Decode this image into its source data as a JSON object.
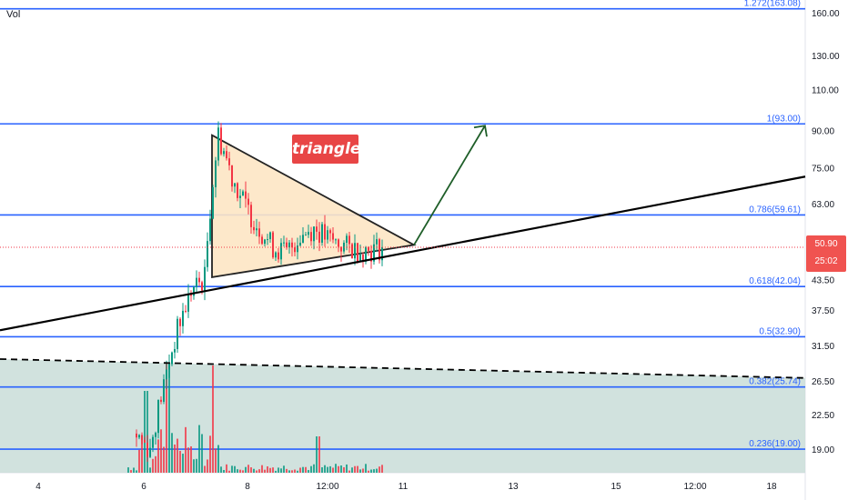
{
  "volume_label": "Vol",
  "pattern_badge": "triangle",
  "last_price": {
    "value": "50.90",
    "countdown": "25:02"
  },
  "colors": {
    "up": "#089981",
    "down": "#f23645",
    "fib": "#2962ff",
    "triangle_fill": "#fde6c4",
    "zone": "#c9ddd8",
    "badge": "#e84545",
    "arrow": "#1e5e28",
    "price_line": "#f23645"
  },
  "chart_data": {
    "type": "candlestick",
    "price_scale": "log",
    "ylim": [
      16.5,
      170
    ],
    "y_ticks": [
      "160.00",
      "130.00",
      "110.00",
      "90.00",
      "75.00",
      "63.00",
      "50.90",
      "43.50",
      "37.50",
      "31.50",
      "26.50",
      "22.50",
      "19.00"
    ],
    "x_tick_labels": [
      "4",
      "6",
      "8",
      "12:00",
      "11",
      "13",
      "15",
      "12:00",
      "18"
    ],
    "fib_levels": [
      {
        "label": "1.272(163.08)",
        "value": 163.08
      },
      {
        "label": "1(93.00)",
        "value": 93.0
      },
      {
        "label": "0.786(59.61)",
        "value": 59.61
      },
      {
        "label": "0.618(42.04)",
        "value": 42.04
      },
      {
        "label": "0.5(32.90)",
        "value": 32.9
      },
      {
        "label": "0.382(25.74)",
        "value": 25.74
      },
      {
        "label": "0.236(19.00)",
        "value": 19.0
      }
    ],
    "last_price": 50.9,
    "x_labels": [
      "6",
      "8",
      "11"
    ],
    "price_path": [
      20.5,
      19,
      26,
      34,
      41,
      44,
      88,
      72,
      62,
      56,
      51,
      49.5,
      54,
      56,
      53,
      51.5,
      50.5,
      50.2,
      50.9
    ],
    "support_line": [
      {
        "x_label": "4",
        "price": 35.5
      },
      {
        "x_label": "18",
        "price": 70
      }
    ],
    "triangle": [
      {
        "x_label": "pattern start",
        "price": 88
      },
      {
        "x_label": "11",
        "price": 51.5
      },
      {
        "x_label": "pattern start",
        "price": 44
      }
    ],
    "target_arrow": {
      "from_price": 51.5,
      "to_price": 93.0
    },
    "dashed_trendline": [
      {
        "x_label": "4",
        "price": 29.5
      },
      {
        "x_label": "18",
        "price": 26.9
      }
    ]
  }
}
